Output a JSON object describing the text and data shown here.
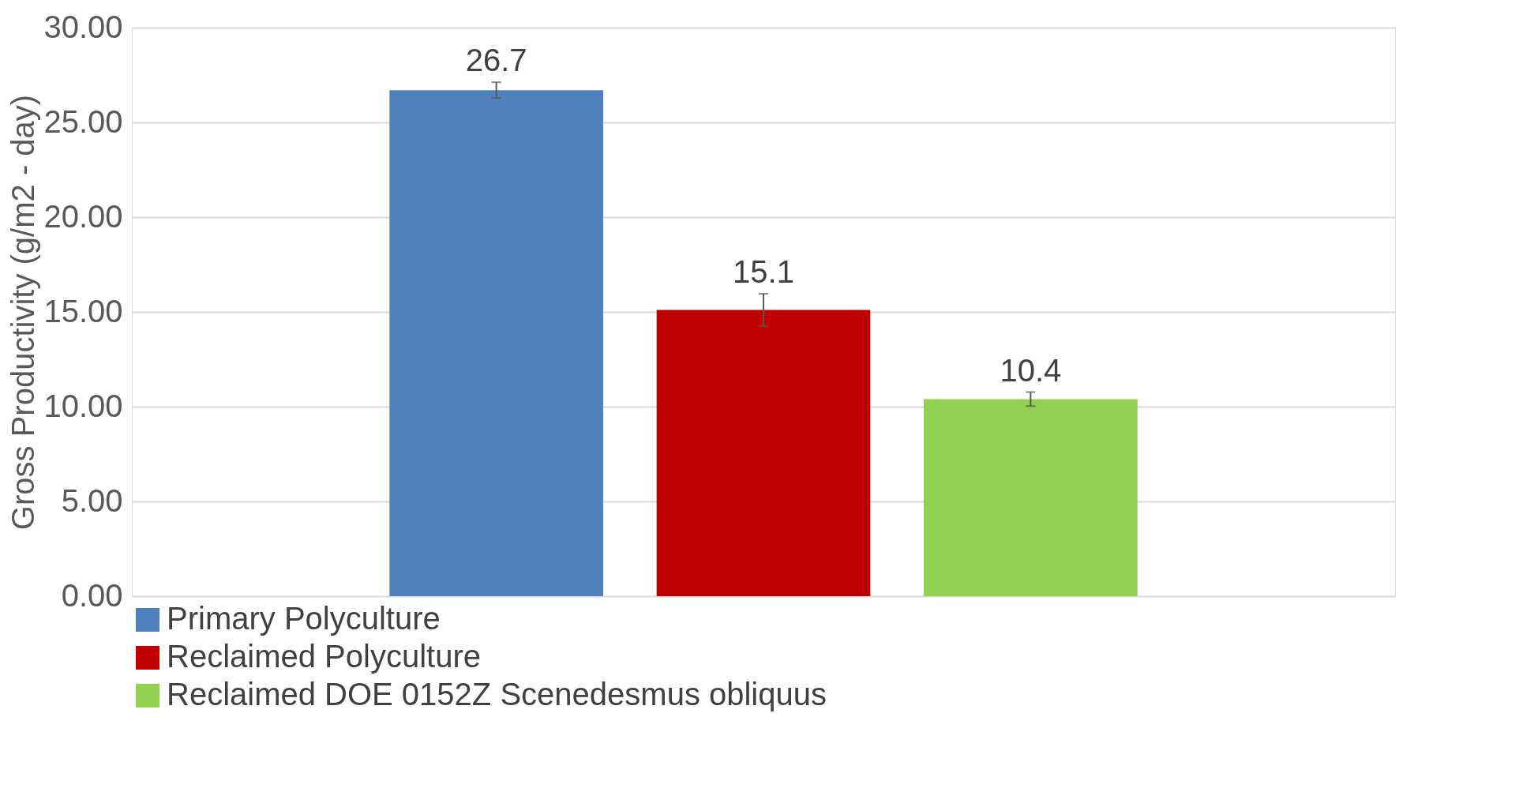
{
  "chart_data": {
    "type": "bar",
    "ylabel": "Gross Productivity (g/m2 - day)",
    "categories": [
      null
    ],
    "series": [
      {
        "name": "Primary Polyculture",
        "color": "#4f81bd",
        "values": [
          26.7
        ],
        "errors": [
          0.42
        ]
      },
      {
        "name": "Reclaimed Polyculture",
        "color": "#c00000",
        "values": [
          15.1
        ],
        "errors": [
          0.86
        ]
      },
      {
        "name": "Reclaimed DOE 0152Z Scenedesmus obliquus",
        "color": "#92d050",
        "values": [
          10.4
        ],
        "errors": [
          0.37
        ]
      }
    ],
    "ylim": [
      0,
      30
    ],
    "yticks": [
      {
        "value": 0,
        "label": "0.00"
      },
      {
        "value": 5,
        "label": "5.00"
      },
      {
        "value": 10,
        "label": "10.00"
      },
      {
        "value": 15,
        "label": "15.00"
      },
      {
        "value": 20,
        "label": "20.00"
      },
      {
        "value": 25,
        "label": "25.00"
      },
      {
        "value": 30,
        "label": "30.00"
      }
    ],
    "grid": "y",
    "legend": "bottom",
    "data_labels": true,
    "tick_labels": "y"
  }
}
